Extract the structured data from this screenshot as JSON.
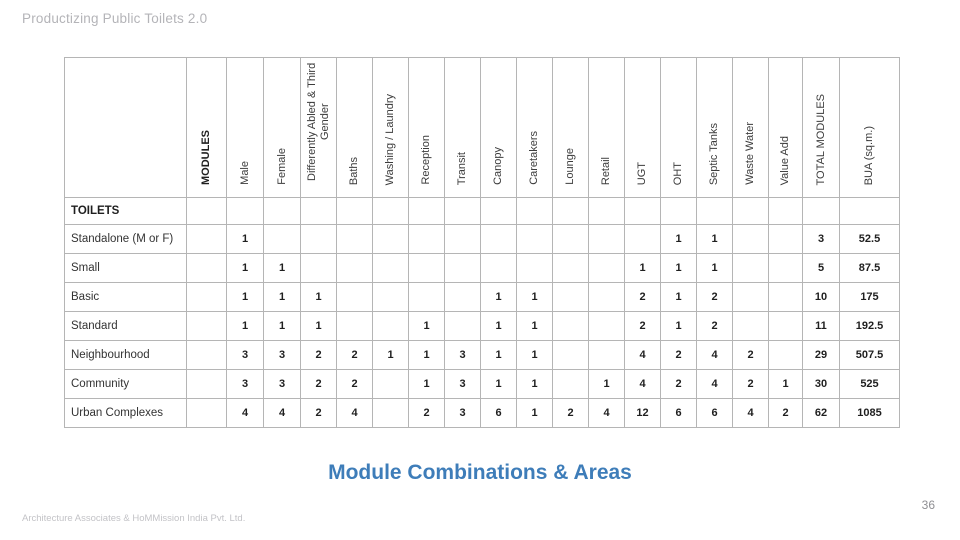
{
  "header": {
    "title": "Productizing Public Toilets 2.0"
  },
  "table": {
    "modules_header": "MODULES",
    "section_header": "TOILETS",
    "columns": [
      "Male",
      "Female",
      "Differently Abled & Third Gender",
      "Baths",
      "Washing / Laundry",
      "Reception",
      "Transit",
      "Canopy",
      "Caretakers",
      "Lounge",
      "Retail",
      "UGT",
      "OHT",
      "Septic Tanks",
      "Waste Water",
      "Value Add",
      "TOTAL MODULES",
      "BUA (sq.m.)"
    ],
    "rows": [
      {
        "label": "Standalone (M or F)",
        "values": [
          "1",
          "",
          "",
          "",
          "",
          "",
          "",
          "",
          "",
          "",
          "",
          "",
          "1",
          "1",
          "",
          "",
          "3",
          "52.5"
        ]
      },
      {
        "label": "Small",
        "values": [
          "1",
          "1",
          "",
          "",
          "",
          "",
          "",
          "",
          "",
          "",
          "",
          "1",
          "1",
          "1",
          "",
          "",
          "5",
          "87.5"
        ]
      },
      {
        "label": "Basic",
        "values": [
          "1",
          "1",
          "1",
          "",
          "",
          "",
          "",
          "1",
          "1",
          "",
          "",
          "2",
          "1",
          "2",
          "",
          "",
          "10",
          "175"
        ]
      },
      {
        "label": "Standard",
        "values": [
          "1",
          "1",
          "1",
          "",
          "",
          "1",
          "",
          "1",
          "1",
          "",
          "",
          "2",
          "1",
          "2",
          "",
          "",
          "11",
          "192.5"
        ]
      },
      {
        "label": "Neighbourhood",
        "values": [
          "3",
          "3",
          "2",
          "2",
          "1",
          "1",
          "3",
          "1",
          "1",
          "",
          "",
          "4",
          "2",
          "4",
          "2",
          "",
          "29",
          "507.5"
        ]
      },
      {
        "label": "Community",
        "values": [
          "3",
          "3",
          "2",
          "2",
          "",
          "1",
          "3",
          "1",
          "1",
          "",
          "1",
          "4",
          "2",
          "4",
          "2",
          "1",
          "30",
          "525"
        ]
      },
      {
        "label": "Urban Complexes",
        "values": [
          "4",
          "4",
          "2",
          "4",
          "",
          "2",
          "3",
          "6",
          "1",
          "2",
          "4",
          "12",
          "6",
          "6",
          "4",
          "2",
          "62",
          "1085"
        ]
      }
    ]
  },
  "caption": {
    "text": "Module Combinations & Areas",
    "color": "#3e7db9"
  },
  "footer": {
    "credit": "Architecture Associates & HoMMission India Pvt. Ltd.",
    "page_number": "36"
  },
  "colors": {
    "accent_blue": "#3e7db9",
    "grid_line": "#b5b5b5",
    "muted_title": "#b4b4b8"
  }
}
